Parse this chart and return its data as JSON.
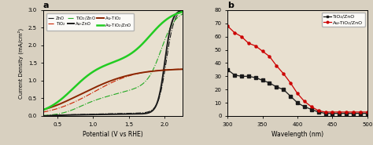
{
  "panel_a": {
    "title": "a",
    "xlabel": "Potential (V vs RHE)",
    "ylabel": "Current Density (mA/cm²)",
    "xlim": [
      0.3,
      2.25
    ],
    "ylim": [
      0.0,
      3.0
    ],
    "xticks": [
      0.5,
      1.0,
      1.5,
      2.0
    ],
    "yticks": [
      0.0,
      0.5,
      1.0,
      1.5,
      2.0,
      2.5,
      3.0
    ],
    "bg_color": "#e8e0d0"
  },
  "panel_b": {
    "title": "b",
    "xlabel": "Wavelength (nm)",
    "xlim": [
      300,
      500
    ],
    "ylim": [
      0,
      80
    ],
    "xticks": [
      300,
      350,
      400,
      450,
      500
    ],
    "yticks": [
      0,
      10,
      20,
      30,
      40,
      50,
      60,
      70,
      80
    ],
    "bg_color": "#e8e0d0",
    "TiO2ZnO": {
      "color": "#1a1a1a",
      "marker": "s",
      "label": "TiO₂/ZnO",
      "x": [
        300,
        310,
        320,
        330,
        340,
        350,
        360,
        370,
        380,
        390,
        400,
        410,
        420,
        430,
        440,
        450,
        460,
        470,
        480,
        490,
        500
      ],
      "y": [
        35,
        31,
        30,
        30,
        29,
        27,
        25,
        22,
        20,
        15,
        10,
        7,
        5,
        3,
        2,
        2,
        2,
        2,
        2,
        2,
        2
      ]
    },
    "AuTiO2ZnO": {
      "color": "#cc0000",
      "marker": "o",
      "label": "Au-TiO₂/ZnO",
      "x": [
        300,
        310,
        320,
        330,
        340,
        350,
        360,
        370,
        380,
        390,
        400,
        410,
        420,
        430,
        440,
        450,
        460,
        470,
        480,
        490,
        500
      ],
      "y": [
        68,
        63,
        60,
        55,
        53,
        49,
        45,
        38,
        32,
        25,
        17,
        11,
        7,
        4,
        3,
        3,
        3,
        3,
        3,
        3,
        3
      ]
    }
  }
}
